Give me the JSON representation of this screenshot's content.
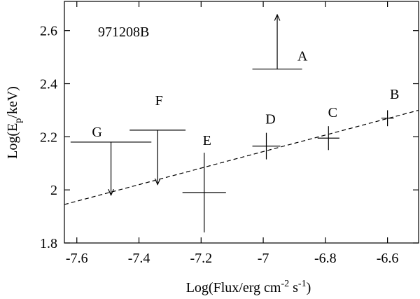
{
  "chart_data": {
    "type": "scatter",
    "title": "971208B",
    "x_label": [
      "Log(Flux/erg cm",
      "-2",
      " s",
      "-1",
      ")"
    ],
    "y_label": [
      "Log(E",
      "p",
      "/keV)"
    ],
    "xlim": [
      -7.64,
      -6.5
    ],
    "ylim": [
      1.8,
      2.71
    ],
    "xticks": [
      -7.6,
      -7.4,
      -7.2,
      -7,
      -6.8,
      -6.6
    ],
    "yticks": [
      1.8,
      2,
      2.2,
      2.4,
      2.6
    ],
    "color": "#000000",
    "points": [
      {
        "label": "A",
        "x": -6.955,
        "y": 2.455,
        "xerr": 0.08,
        "limit": 2.66
      },
      {
        "label": "B",
        "x": -6.6,
        "y": 2.27,
        "xerr": 0.02,
        "yerr": 0.03
      },
      {
        "label": "C",
        "x": -6.79,
        "y": 2.195,
        "xerr": 0.035,
        "yerr": 0.045
      },
      {
        "label": "D",
        "x": -6.99,
        "y": 2.165,
        "xerr": 0.045,
        "yerr": 0.05
      },
      {
        "label": "E",
        "x": -7.19,
        "y": 1.99,
        "xerr": 0.07,
        "yerr": 0.15
      },
      {
        "label": "F",
        "x": -7.34,
        "y": 2.225,
        "xerr": 0.09,
        "limit": 2.02
      },
      {
        "label": "G",
        "x": -7.49,
        "y": 2.18,
        "xerr": 0.13,
        "limit": 1.98
      }
    ],
    "fit": {
      "x": [
        -7.64,
        -6.5
      ],
      "y": [
        1.945,
        2.3
      ]
    }
  }
}
